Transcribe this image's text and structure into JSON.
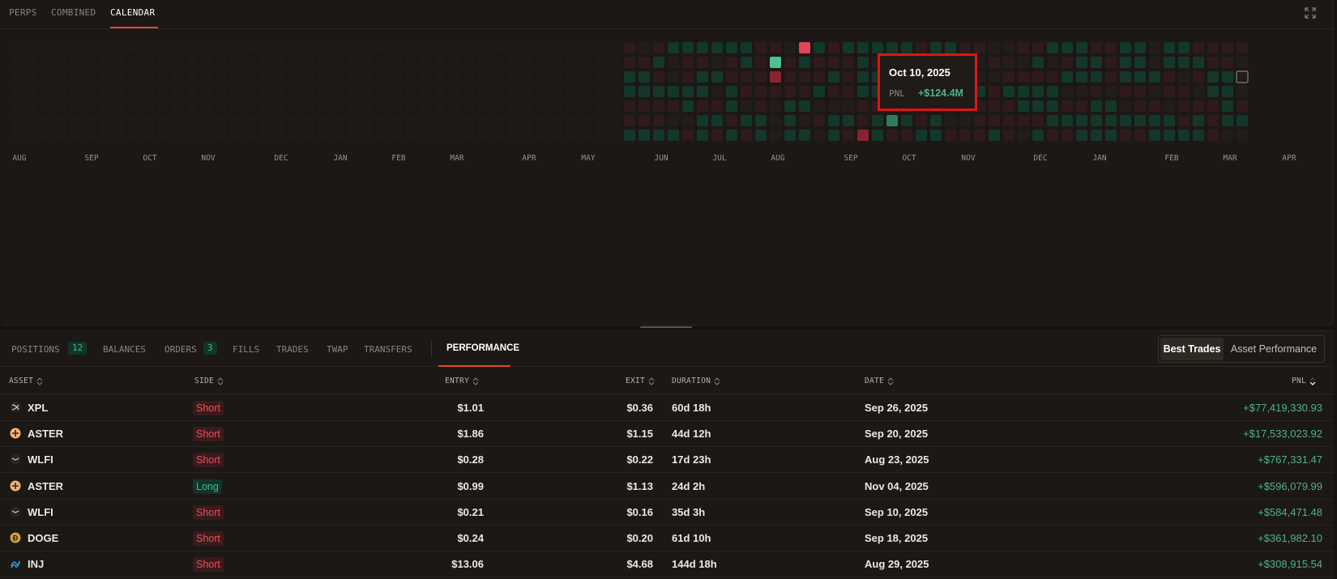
{
  "top_tabs": [
    "PERPS",
    "COMBINED",
    "CALENDAR"
  ],
  "active_top_tab": "CALENDAR",
  "calendar": {
    "months": [
      "AUG",
      "SEP",
      "OCT",
      "NOV",
      "DEC",
      "JAN",
      "FEB",
      "MAR",
      "APR",
      "MAY",
      "JUN",
      "JUL",
      "AUG",
      "SEP",
      "OCT",
      "NOV",
      "DEC",
      "JAN",
      "FEB",
      "MAR",
      "APR"
    ],
    "colors": {
      "empty": "#1f1a17",
      "neutral": "#221d1a",
      "loss": "#2f1a1c",
      "gain": "#14372b",
      "big_gain": "#4fc293",
      "big_loss": "#e0455a",
      "mid_loss": "#8a2230",
      "mid_gain": "#2f7a5e"
    },
    "tooltip": {
      "date": "Oct 10, 2025",
      "label": "PNL",
      "value": "+$124.4M"
    }
  },
  "bottom_tabs": {
    "positions": {
      "label": "POSITIONS",
      "count": "12"
    },
    "balances": "BALANCES",
    "orders": {
      "label": "ORDERS",
      "count": "3"
    },
    "fills": "FILLS",
    "trades": "TRADES",
    "twap": "TWAP",
    "transfers": "TRANSFERS",
    "performance": "PERFORMANCE"
  },
  "toggle": {
    "best_trades": "Best Trades",
    "asset_performance": "Asset Performance"
  },
  "table": {
    "headers": {
      "asset": "ASSET",
      "side": "SIDE",
      "entry": "ENTRY",
      "exit": "EXIT",
      "duration": "DURATION",
      "date": "DATE",
      "pnl": "PNL"
    },
    "rows": [
      {
        "asset": "XPL",
        "side": "Short",
        "entry": "$1.01",
        "exit": "$0.36",
        "duration": "60d 18h",
        "date": "Sep 26, 2025",
        "pnl": "+$77,419,330.93"
      },
      {
        "asset": "ASTER",
        "side": "Short",
        "entry": "$1.86",
        "exit": "$1.15",
        "duration": "44d 12h",
        "date": "Sep 20, 2025",
        "pnl": "+$17,533,023.92"
      },
      {
        "asset": "WLFI",
        "side": "Short",
        "entry": "$0.28",
        "exit": "$0.22",
        "duration": "17d 23h",
        "date": "Aug 23, 2025",
        "pnl": "+$767,331.47"
      },
      {
        "asset": "ASTER",
        "side": "Long",
        "entry": "$0.99",
        "exit": "$1.13",
        "duration": "24d 2h",
        "date": "Nov 04, 2025",
        "pnl": "+$596,079.99"
      },
      {
        "asset": "WLFI",
        "side": "Short",
        "entry": "$0.21",
        "exit": "$0.16",
        "duration": "35d 3h",
        "date": "Sep 10, 2025",
        "pnl": "+$584,471.48"
      },
      {
        "asset": "DOGE",
        "side": "Short",
        "entry": "$0.24",
        "exit": "$0.20",
        "duration": "61d 10h",
        "date": "Sep 18, 2025",
        "pnl": "+$361,982.10"
      },
      {
        "asset": "INJ",
        "side": "Short",
        "entry": "$13.06",
        "exit": "$4.68",
        "duration": "144d 18h",
        "date": "Aug 29, 2025",
        "pnl": "+$308,915.54"
      }
    ]
  }
}
